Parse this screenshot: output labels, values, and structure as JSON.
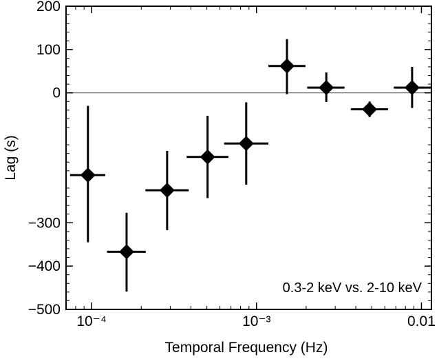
{
  "chart_data": {
    "type": "scatter",
    "xlabel": "Temporal Frequency (Hz)",
    "ylabel": "Lag (s)",
    "xscale": "log",
    "xlim": [
      7e-05,
      0.0115
    ],
    "ylim": [
      -500,
      200
    ],
    "grid": false,
    "x_ticks": [
      {
        "value": 0.0001,
        "label": "10⁻⁴"
      },
      {
        "value": 0.001,
        "label": "10⁻³"
      },
      {
        "value": 0.01,
        "label": "0.01"
      }
    ],
    "y_ticks": [
      {
        "value": 200,
        "label": "200"
      },
      {
        "value": 100,
        "label": "100"
      },
      {
        "value": 0,
        "label": "0"
      },
      {
        "value": -300,
        "label": "−300"
      },
      {
        "value": -400,
        "label": "−400"
      },
      {
        "value": -500,
        "label": "−500"
      }
    ],
    "zero_line": 0,
    "annotation": "0.3-2 keV vs. 2-10 keV",
    "points": [
      {
        "x": 9.5e-05,
        "y": -190,
        "x_lo": 7.4e-05,
        "x_hi": 0.000121,
        "y_err_lo": 155,
        "y_err_hi": 160
      },
      {
        "x": 0.000163,
        "y": -367,
        "x_lo": 0.000124,
        "x_hi": 0.000213,
        "y_err_lo": 92,
        "y_err_hi": 90
      },
      {
        "x": 0.000287,
        "y": -225,
        "x_lo": 0.000212,
        "x_hi": 0.000388,
        "y_err_lo": 92,
        "y_err_hi": 91
      },
      {
        "x": 0.000505,
        "y": -148,
        "x_lo": 0.000377,
        "x_hi": 0.000676,
        "y_err_lo": 95,
        "y_err_hi": 95
      },
      {
        "x": 0.000866,
        "y": -117,
        "x_lo": 0.000636,
        "x_hi": 0.00118,
        "y_err_lo": 95,
        "y_err_hi": 95
      },
      {
        "x": 0.00153,
        "y": 62,
        "x_lo": 0.00118,
        "x_hi": 0.00198,
        "y_err_lo": 65,
        "y_err_hi": 62
      },
      {
        "x": 0.00265,
        "y": 12,
        "x_lo": 0.00203,
        "x_hi": 0.00342,
        "y_err_lo": 33,
        "y_err_hi": 35
      },
      {
        "x": 0.00485,
        "y": -38,
        "x_lo": 0.00373,
        "x_hi": 0.00628,
        "y_err_lo": 18,
        "y_err_hi": 18
      },
      {
        "x": 0.00878,
        "y": 12,
        "x_lo": 0.0068,
        "x_hi": 0.0114,
        "y_err_lo": 47,
        "y_err_hi": 48
      }
    ]
  }
}
